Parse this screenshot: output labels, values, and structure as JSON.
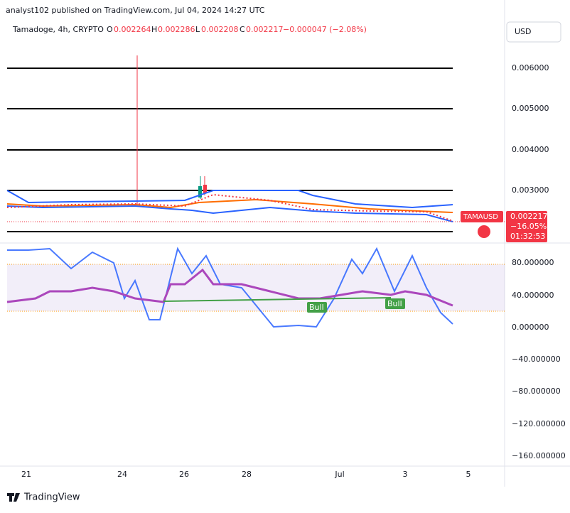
{
  "header": {
    "publisher": "analyst102 published on TradingView.com, Jul 04, 2024 14:27 UTC"
  },
  "legend": {
    "symbol": "Tamadoge, 4h, CRYPTO",
    "open_label": "O",
    "open": "0.002264",
    "high_label": "H",
    "high": "0.002286",
    "low_label": "L",
    "low": "0.002208",
    "close_label": "C",
    "close": "0.002217",
    "change": "−0.000047 (−2.08%)"
  },
  "currency": "USD",
  "price_axis": [
    "0.006000",
    "0.005000",
    "0.004000",
    "0.003000"
  ],
  "price_tag": {
    "symbol": "TAMAUSD",
    "price": "0.002217",
    "change": "−16.05%",
    "countdown": "01:32:53"
  },
  "oscillator_axis": [
    "80.000000",
    "40.000000",
    "0.000000",
    "−40.000000",
    "−80.000000",
    "−120.000000",
    "−160.000000"
  ],
  "signals": [
    "Bull",
    "Bull"
  ],
  "time_axis": [
    "21",
    "24",
    "26",
    "28",
    "Jul",
    "3",
    "5"
  ],
  "footer": {
    "brand": "TradingView"
  }
}
